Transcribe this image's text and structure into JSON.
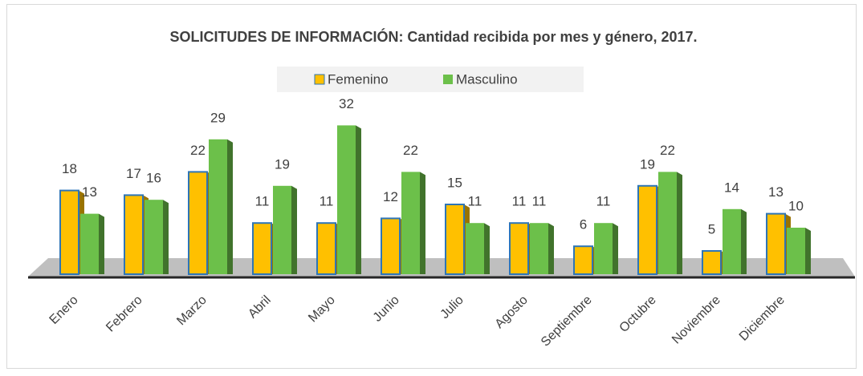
{
  "chart_data": {
    "type": "bar",
    "title": "SOLICITUDES DE INFORMACIÓN:  Cantidad recibida por mes y género, 2017.",
    "categories": [
      "Enero",
      "Febrero",
      "Marzo",
      "Abril",
      "Mayo",
      "Junio",
      "Julio",
      "Agosto",
      "Septiembre",
      "Octubre",
      "Noviembre",
      "Diciembre"
    ],
    "series": [
      {
        "name": "Femenino",
        "color": "#ffc000",
        "values": [
          18,
          17,
          22,
          11,
          11,
          12,
          15,
          11,
          6,
          19,
          5,
          13
        ]
      },
      {
        "name": "Masculino",
        "color": "#6cc04a",
        "values": [
          13,
          16,
          29,
          19,
          32,
          22,
          11,
          11,
          11,
          22,
          14,
          10
        ]
      }
    ],
    "legend": "top"
  }
}
